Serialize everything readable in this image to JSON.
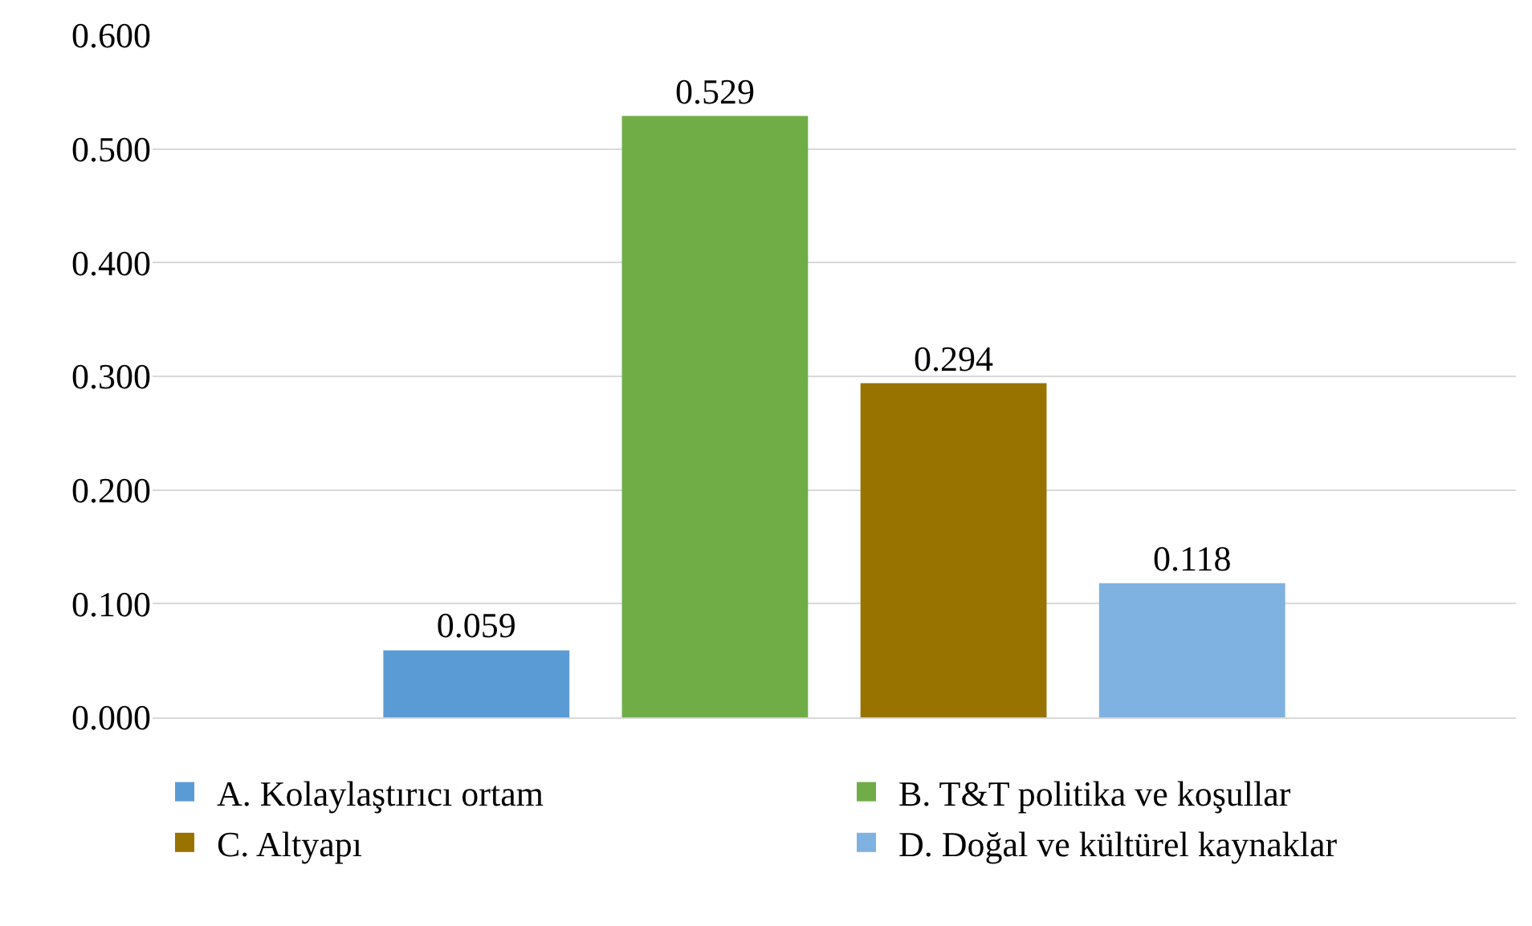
{
  "chart_data": {
    "type": "bar",
    "categories": [
      null
    ],
    "series": [
      {
        "name": "A. Kolaylaştırıcı ortam",
        "color": "#5b9bd5",
        "values": [
          0.059
        ]
      },
      {
        "name": "B. T&T politika ve koşullar",
        "color": "#70ad47",
        "values": [
          0.529
        ]
      },
      {
        "name": "C. Altyapı",
        "color": "#997300",
        "values": [
          0.294
        ]
      },
      {
        "name": "D. Doğal ve kültürel kaynaklar",
        "color": "#7fb2e0",
        "values": [
          0.118
        ]
      }
    ],
    "ylim": [
      0,
      0.6
    ],
    "yticks": [
      {
        "value": 0,
        "label": "0.000"
      },
      {
        "value": 0.1,
        "label": "0.100"
      },
      {
        "value": 0.2,
        "label": "0.200"
      },
      {
        "value": 0.3,
        "label": "0.300"
      },
      {
        "value": 0.4,
        "label": "0.400"
      },
      {
        "value": 0.5,
        "label": "0.500"
      },
      {
        "value": 0.6,
        "label": "0.600"
      }
    ],
    "grid": "y",
    "legend": "bottom",
    "data_labels": true
  }
}
